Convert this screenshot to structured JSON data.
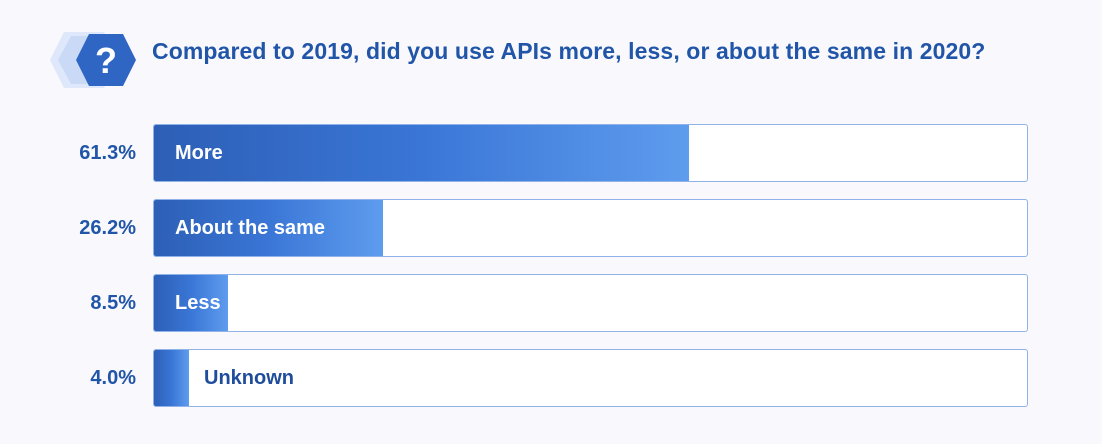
{
  "header": {
    "icon": "question-hexagon-icon",
    "title": "Compared to 2019, did you use APIs more, less, or about the same in 2020?"
  },
  "colors": {
    "text": "#2155a8",
    "bar_start": "#2d5fb6",
    "bar_end": "#5e9cee",
    "track_border": "#8fb2e8",
    "background": "#f9f9fd"
  },
  "chart_data": {
    "type": "bar",
    "orientation": "horizontal",
    "title": "Compared to 2019, did you use APIs more, less, or about the same in 2020?",
    "categories": [
      "More",
      "About the same",
      "Less",
      "Unknown"
    ],
    "values": [
      61.3,
      26.2,
      8.5,
      4.0
    ],
    "value_labels": [
      "61.3%",
      "26.2%",
      "8.5%",
      "4.0%"
    ],
    "xlim": [
      0,
      100
    ],
    "grid": false,
    "legend": "none"
  }
}
